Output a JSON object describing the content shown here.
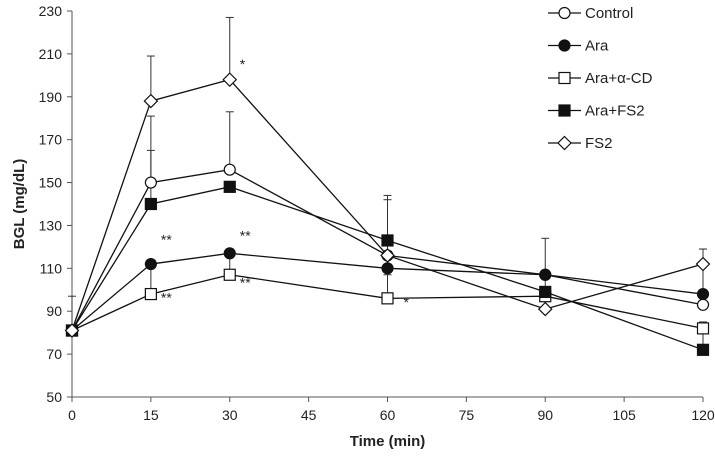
{
  "chart_data": {
    "type": "line",
    "xlabel": "Time  (min)",
    "ylabel": "BGL (mg/dL)",
    "xlim": [
      0,
      120
    ],
    "ylim": [
      50,
      230
    ],
    "xticks": [
      0,
      15,
      30,
      45,
      60,
      75,
      90,
      105,
      120
    ],
    "yticks": [
      50,
      70,
      90,
      110,
      130,
      150,
      170,
      190,
      210,
      230
    ],
    "grid": false,
    "legend_position": "top-right",
    "x": [
      0,
      15,
      30,
      60,
      90,
      120
    ],
    "series": [
      {
        "name": "Control",
        "marker": "circle-open",
        "values": [
          81,
          150,
          156,
          116,
          107,
          93
        ],
        "err": [
          0,
          31,
          27,
          26,
          17,
          26
        ]
      },
      {
        "name": "Ara",
        "marker": "circle-filled",
        "values": [
          81,
          112,
          117,
          110,
          107,
          98
        ],
        "err": [
          0,
          0,
          0,
          0,
          0,
          0
        ]
      },
      {
        "name": "Ara+α-CD",
        "marker": "square-open",
        "values": [
          81,
          98,
          107,
          96,
          97,
          82
        ],
        "err": [
          16,
          12,
          12,
          11,
          12,
          0
        ]
      },
      {
        "name": "Ara+FS2",
        "marker": "square-filled",
        "values": [
          81,
          140,
          148,
          123,
          99,
          72
        ],
        "err": [
          0,
          25,
          0,
          21,
          0,
          13
        ]
      },
      {
        "name": "FS2",
        "marker": "diamond-open",
        "values": [
          81,
          188,
          198,
          116,
          91,
          112
        ],
        "err": [
          0,
          21,
          29,
          0,
          7,
          7
        ]
      }
    ],
    "annotations": [
      {
        "text": "*",
        "x": 30,
        "y": 203
      },
      {
        "text": "**",
        "x": 15,
        "y": 121
      },
      {
        "text": "**",
        "x": 30,
        "y": 123
      },
      {
        "text": "**",
        "x": 15,
        "y": 94
      },
      {
        "text": "**",
        "x": 30,
        "y": 101
      },
      {
        "text": "*",
        "x": 60,
        "y": 92
      }
    ]
  }
}
